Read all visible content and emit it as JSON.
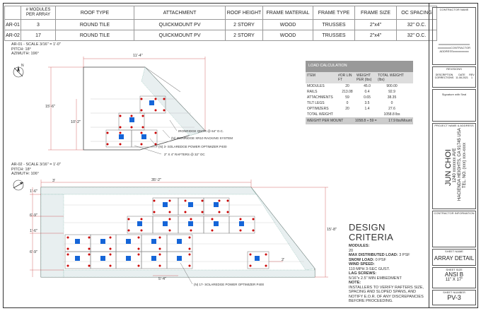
{
  "array_table": {
    "headers": [
      "",
      "# MODULES PER ARRAY",
      "ROOF TYPE",
      "ATTACHMENT",
      "ROOF HEIGHT",
      "FRAME MATERIAL",
      "FRAME TYPE",
      "FRAME SIZE",
      "OC SPACING"
    ],
    "rows": [
      [
        "AR-01",
        "3",
        "ROUND TILE",
        "QUICKMOUNT PV",
        "2 STORY",
        "WOOD",
        "TRUSSES",
        "2\"x4\"",
        "32\" O.C."
      ],
      [
        "AR-02",
        "17",
        "ROUND TILE",
        "QUICKMOUNT PV",
        "2 STORY",
        "WOOD",
        "TRUSSES",
        "2\"x4\"",
        "32\" O.C."
      ]
    ]
  },
  "ar01": {
    "title": "AR-01 - SCALE 3/16\" = 1'-0\"",
    "pitch": "PITCH: 18°",
    "azimuth": "AZIMUTH: 196°",
    "dim_top": "11'-4\"",
    "dim_left": "15'-6\"",
    "dim_inner": "10'-2\"",
    "callouts": [
      "IRONRIDGE QMTR @ 64\" O.C.",
      "(N) IRONRIDGE XR10 RACKING SYSTEM",
      "(N) 3- SOLAREDGE POWER OPTIMIZER P400",
      "2\" X 4\" RAFTERS @ 32\" OC"
    ]
  },
  "ar02": {
    "title": "AR-02 - SCALE 3/16\" = 1'-0\"",
    "pitch": "PITCH: 18°",
    "azimuth": "AZIMUTH: 106°",
    "dim_top": "35'-2\"",
    "dim_3": "3'",
    "dim_left": [
      "1'-6\"",
      "6'-9\"",
      "1'-6\"",
      "6'-9\""
    ],
    "dim_right": "15'-8\"",
    "dim_bottom": "5'-4\"",
    "dim_small": "2'",
    "callout": "(N) 17- SOLAREDGE POWER OPTIMIZER P400"
  },
  "load": {
    "title": "LOAD CALCULATION",
    "cols": [
      "ITEM",
      "#OR LIN FT",
      "WEIGHT PER (lbs)",
      "TOTAL WEIGHT (lbs)"
    ],
    "rows": [
      [
        "MODULES",
        "20",
        "45.0",
        "900.00"
      ],
      [
        "RAILS",
        "213.08",
        "0.4",
        "92.9"
      ],
      [
        "ATTACHMENTS",
        "59",
        "0.65",
        "38.35"
      ],
      [
        "TILT LEGS",
        "0",
        "3.5",
        "0"
      ],
      [
        "OPTIMIZERS",
        "20",
        "1.4",
        "27.6"
      ],
      [
        "TOTAL WEIGHT",
        "",
        "",
        "1058.8  lbs"
      ]
    ],
    "wpm_label": "WEIGHT PER MOUNT",
    "wpm_value": "1058.8 ÷ 59 =",
    "wpm_result": "17.9 lbs/Mount"
  },
  "design": {
    "title": "DESIGN CRITERIA",
    "modules_label": "MODULES:",
    "modules_value": "20",
    "mdl_label": "MAX DISTRIBUTED LOAD:",
    "mdl_value": "3 PSF",
    "snow_label": "SNOW LOAD:",
    "snow_value": "0 PSF",
    "wind_label": "WIND SPEED:",
    "wind_value": "110 MPH 3-SEC GUST.",
    "lag_label": "LAG SCREWS:",
    "lag_value": "5/16\"x 2.5\" MIN EMBEDMENT",
    "note_label": "NOTE:",
    "note_value": "INSTALLERS TO VERIFY RAFTERS SIZE, SPACING AND SLOPED SPANS, AND NOTIFY E.O.R. OF ANY DISCREPANCIES BEFORE PROCEEDING."
  },
  "titleblock": {
    "contractor_name": "CONTRACTOR NAME",
    "contractor_lines": [
      "xxxxxxxxxxxxxxxxxxxxxx",
      "xxxxxxxxxCONTRACTOR",
      "ADDRESSxxxxxxxxxxx"
    ],
    "revisions": "REVISIONS",
    "rev_cols": [
      "DESCRIPTION",
      "DATE",
      "REV"
    ],
    "rev_row": [
      "CORRECTIONS",
      "11.08.2021",
      "1"
    ],
    "signature": "Signature with Seal",
    "project_label": "PROJECT NAME & ADDRESS",
    "owner": "JUN CHOI",
    "address1": "1240 xxxxxxx AVE",
    "address2": "HACIENDA HEIGHTS, CA 91745 USA",
    "tel": "TEL. NO. (xxx) xxx-xxxx",
    "contractor_info": "CONTRACTOR INFORMATION",
    "sheet_name_label": "SHEET NAME",
    "sheet_name": "ARRAY DETAIL",
    "sheet_size_label": "SHEET SIZE",
    "sheet_size": "ANSI B",
    "sheet_dims": "11\" X 17\"",
    "sheet_number_label": "SHEET NUMBER",
    "sheet_number": "PV-3"
  }
}
